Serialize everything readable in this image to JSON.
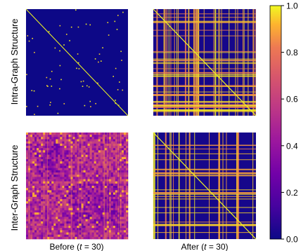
{
  "chart_data": [
    {
      "type": "heatmap",
      "row_label": "Intra-Graph Structure",
      "column": "before",
      "description_pattern": "sparse",
      "value_range": [
        0,
        1
      ],
      "diagonal_value": 1.0,
      "background_value": 0.0
    },
    {
      "type": "heatmap",
      "row_label": "Intra-Graph Structure",
      "column": "after",
      "description_pattern": "dense-stripes",
      "value_range": [
        0,
        1
      ],
      "diagonal_value": 1.0,
      "background_value": 0.0
    },
    {
      "type": "heatmap",
      "row_label": "Inter-Graph Structure",
      "column": "before",
      "description_pattern": "mid-range-blocks",
      "value_range": [
        0,
        1
      ],
      "background_value": 0.45
    },
    {
      "type": "heatmap",
      "row_label": "Inter-Graph Structure",
      "column": "after",
      "description_pattern": "dense-stripes",
      "value_range": [
        0,
        1
      ],
      "diagonal_value": 1.0,
      "background_value": 0.0
    }
  ],
  "row_labels": [
    "Intra-Graph Structure",
    "Inter-Graph Structure"
  ],
  "col_labels": [
    "Before (t = 30)",
    "After (t = 30)"
  ],
  "colorbar": {
    "colormap": "plasma",
    "min": 0.0,
    "max": 1.0,
    "ticks": [
      0.0,
      0.2,
      0.4,
      0.6,
      0.8,
      1.0
    ],
    "tick_labels": [
      "0.0",
      "0.2",
      "0.4",
      "0.6",
      "0.8",
      "1.0"
    ]
  },
  "colors": {
    "low": "#0d0887",
    "mid": "#cc4778",
    "high": "#f0f921"
  }
}
